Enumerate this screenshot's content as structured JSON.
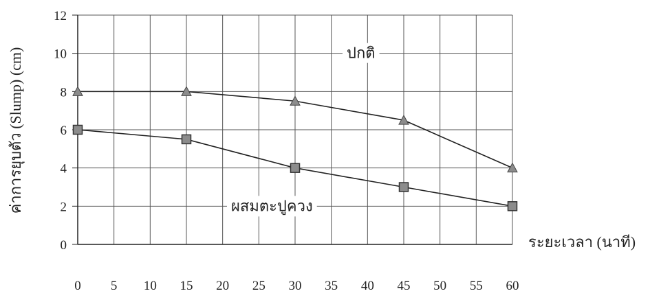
{
  "chart_data": {
    "type": "line",
    "x": [
      0,
      15,
      30,
      45,
      60
    ],
    "x_ticks": [
      0,
      5,
      10,
      15,
      20,
      25,
      30,
      35,
      40,
      45,
      50,
      55,
      60
    ],
    "y_ticks": [
      0,
      2,
      4,
      6,
      8,
      10,
      12
    ],
    "xlim": [
      0,
      60
    ],
    "ylim": [
      0,
      12
    ],
    "xlabel": "ระยะเวลา (นาที)",
    "ylabel": "ค่าการยุบตัว (Slump) (cm)",
    "grid": true,
    "series": [
      {
        "name": "ปกติ",
        "marker": "triangle",
        "values": [
          8,
          8,
          7.5,
          6.5,
          4
        ]
      },
      {
        "name": "ผสมตะปูควง",
        "marker": "square",
        "values": [
          6,
          5.5,
          4,
          3,
          2
        ]
      }
    ],
    "colors": {
      "line": "#222222",
      "grid": "#555555",
      "marker": "#8c8c8c"
    }
  }
}
